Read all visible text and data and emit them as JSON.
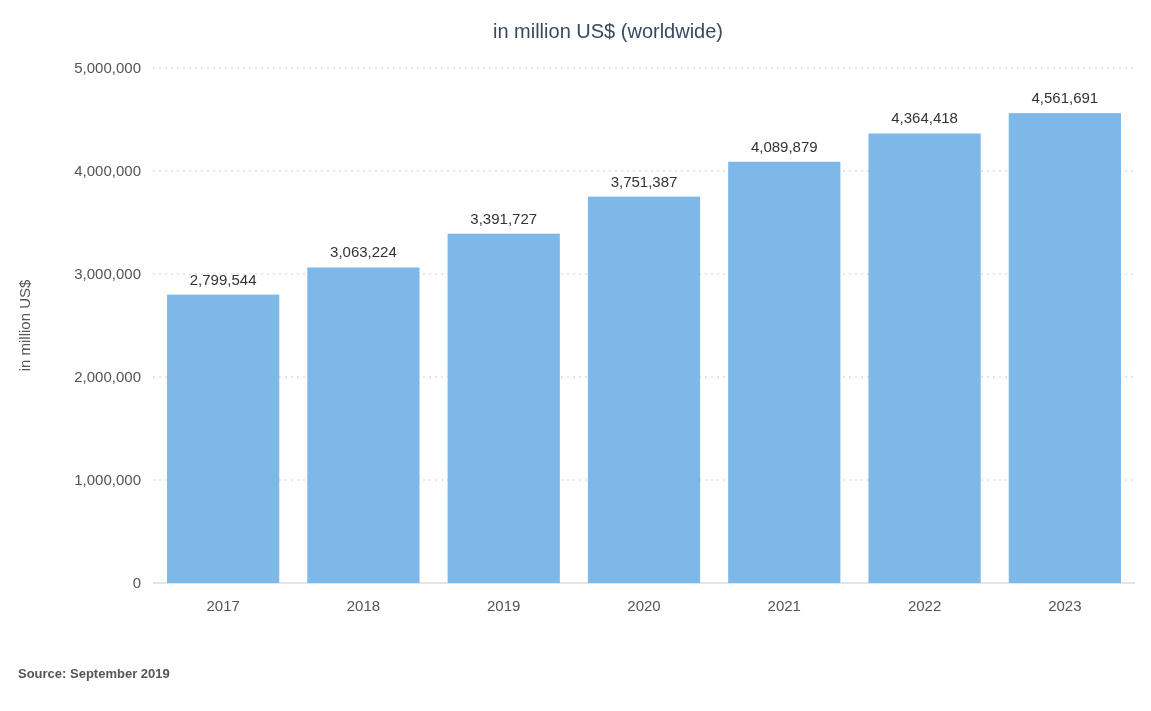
{
  "chart_data": {
    "type": "bar",
    "title": "in million US$ (worldwide)",
    "ylabel": "in million US$",
    "categories": [
      "2017",
      "2018",
      "2019",
      "2020",
      "2021",
      "2022",
      "2023"
    ],
    "values": [
      2799544,
      3063224,
      3391727,
      3751387,
      4089879,
      4364418,
      4561691
    ],
    "color": "#7db8e8",
    "ylim": [
      0,
      5000000
    ],
    "yticks": [
      {
        "value": 0,
        "label": "0"
      },
      {
        "value": 1000000,
        "label": "1,000,000"
      },
      {
        "value": 2000000,
        "label": "2,000,000"
      },
      {
        "value": 3000000,
        "label": "3,000,000"
      },
      {
        "value": 4000000,
        "label": "4,000,000"
      },
      {
        "value": 5000000,
        "label": "5,000,000"
      }
    ],
    "grid": "y",
    "value_labels": [
      "2,799,544",
      "3,063,224",
      "3,391,727",
      "3,751,387",
      "4,089,879",
      "4,364,418",
      "4,561,691"
    ],
    "annotations": [
      "Source: September 2019"
    ]
  }
}
